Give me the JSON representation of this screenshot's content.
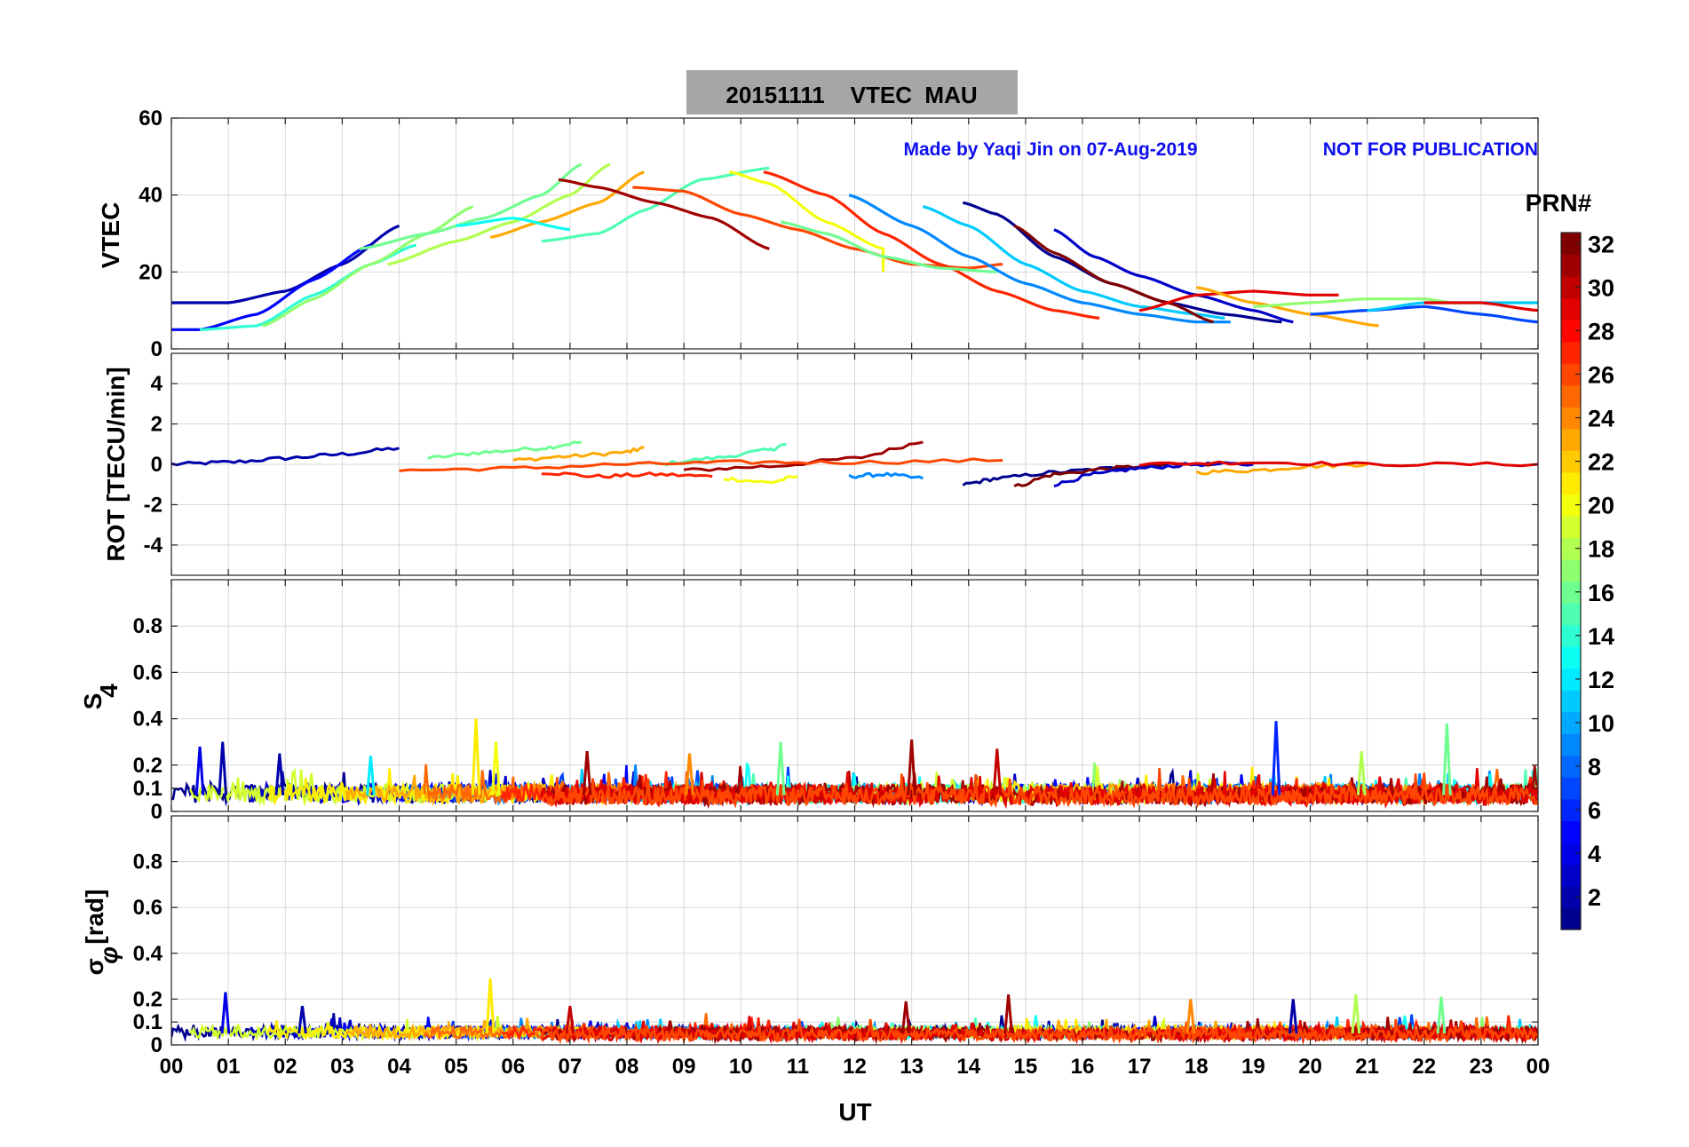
{
  "figure": {
    "title": "20151111    VTEC  MAU",
    "note_author": "Made by Yaqi Jin on 07-Aug-2019",
    "note_warning": "NOT FOR PUBLICATION",
    "colorbar_label": "PRN#",
    "colorbar_ticks": [
      "2",
      "4",
      "6",
      "8",
      "10",
      "12",
      "14",
      "16",
      "18",
      "20",
      "22",
      "24",
      "26",
      "28",
      "30",
      "32"
    ],
    "colorbar_range": [
      1,
      32
    ],
    "colormap": [
      "#00008f",
      "#0000ff",
      "#0080ff",
      "#00ffff",
      "#80ff80",
      "#ffff00",
      "#ff8000",
      "#ff0000",
      "#800000"
    ],
    "xlabel": "UT",
    "x_tick_labels": [
      "00",
      "01",
      "02",
      "03",
      "04",
      "05",
      "06",
      "07",
      "08",
      "09",
      "10",
      "11",
      "12",
      "13",
      "14",
      "15",
      "16",
      "17",
      "18",
      "19",
      "20",
      "21",
      "22",
      "23",
      "00"
    ]
  },
  "chart_data": [
    {
      "type": "line",
      "panel": "vtec",
      "ylabel": "VTEC",
      "ylim": [
        0,
        60
      ],
      "yticks": [
        0,
        20,
        40,
        60
      ],
      "y_tick_labels": [
        "0",
        "20",
        "40",
        "60"
      ],
      "xlim": [
        0,
        24
      ],
      "series": [
        {
          "prn": 2,
          "x": [
            0.0,
            1.0,
            2.0,
            3.0,
            4.0
          ],
          "y": [
            12,
            12,
            15,
            22,
            32
          ]
        },
        {
          "prn": 5,
          "x": [
            0.0,
            0.5,
            1.5,
            2.5,
            3.5
          ],
          "y": [
            5,
            5,
            9,
            18,
            27
          ]
        },
        {
          "prn": 14,
          "x": [
            0.5,
            1.5,
            2.5,
            3.5,
            4.3
          ],
          "y": [
            5,
            6,
            14,
            22,
            27
          ]
        },
        {
          "prn": 17,
          "x": [
            1.6,
            2.5,
            3.5,
            4.5,
            5.3
          ],
          "y": [
            6,
            13,
            22,
            30,
            37
          ]
        },
        {
          "prn": 16,
          "x": [
            3.3,
            4.5,
            5.5,
            6.5,
            7.2
          ],
          "y": [
            26,
            30,
            34,
            40,
            48
          ]
        },
        {
          "prn": 18,
          "x": [
            3.8,
            5.0,
            6.0,
            7.0,
            7.7
          ],
          "y": [
            22,
            28,
            33,
            40,
            48
          ]
        },
        {
          "prn": 23,
          "x": [
            5.6,
            6.5,
            7.5,
            8.3
          ],
          "y": [
            29,
            33,
            38,
            46
          ]
        },
        {
          "prn": 13,
          "x": [
            5.0,
            6.0,
            7.0
          ],
          "y": [
            32,
            34,
            31
          ]
        },
        {
          "prn": 15,
          "x": [
            6.5,
            7.5,
            8.3,
            9.3,
            10.5
          ],
          "y": [
            28,
            30,
            36,
            44,
            47
          ]
        },
        {
          "prn": 31,
          "x": [
            6.8,
            7.5,
            8.5,
            9.5,
            10.5
          ],
          "y": [
            44,
            42,
            38,
            34,
            26
          ]
        },
        {
          "prn": 26,
          "x": [
            8.1,
            9.0,
            10.0,
            11.0,
            12.0,
            13.0,
            14.0,
            14.6
          ],
          "y": [
            42,
            41,
            35,
            31,
            26,
            22,
            21,
            22
          ]
        },
        {
          "prn": 20,
          "x": [
            9.8,
            10.5,
            11.5,
            12.5,
            12.5
          ],
          "y": [
            46,
            43,
            33,
            26,
            20
          ]
        },
        {
          "prn": 27,
          "x": [
            10.4,
            11.5,
            12.5,
            13.5,
            14.5,
            15.5,
            16.3
          ],
          "y": [
            46,
            40,
            30,
            22,
            15,
            10,
            8
          ]
        },
        {
          "prn": 16,
          "x": [
            10.7,
            11.5,
            12.5,
            13.5,
            14.5
          ],
          "y": [
            33,
            30,
            24,
            21,
            20
          ]
        },
        {
          "prn": 9,
          "x": [
            11.9,
            13.0,
            14.0,
            15.0,
            16.0,
            17.0,
            18.0,
            18.6
          ],
          "y": [
            40,
            32,
            24,
            17,
            12,
            9,
            7,
            7
          ]
        },
        {
          "prn": 11,
          "x": [
            13.2,
            14.0,
            15.0,
            16.0,
            17.0,
            18.0,
            18.5
          ],
          "y": [
            37,
            32,
            22,
            15,
            11,
            9,
            8
          ]
        },
        {
          "prn": 1,
          "x": [
            13.9,
            14.5,
            15.5,
            16.5,
            17.5,
            18.5,
            19.5
          ],
          "y": [
            38,
            35,
            24,
            17,
            12,
            9,
            7
          ]
        },
        {
          "prn": 32,
          "x": [
            14.8,
            15.5,
            16.5,
            17.5,
            18.3
          ],
          "y": [
            32,
            25,
            17,
            12,
            7
          ]
        },
        {
          "prn": 3,
          "x": [
            15.5,
            16.2,
            17.0,
            18.0,
            19.0,
            19.7
          ],
          "y": [
            31,
            24,
            19,
            14,
            10,
            7
          ]
        },
        {
          "prn": 29,
          "x": [
            17.0,
            18.0,
            19.0,
            20.0,
            20.5
          ],
          "y": [
            10,
            14,
            15,
            14,
            14
          ]
        },
        {
          "prn": 23,
          "x": [
            18.0,
            19.0,
            20.0,
            21.2
          ],
          "y": [
            16,
            12,
            9,
            6
          ]
        },
        {
          "prn": 17,
          "x": [
            19.0,
            20.0,
            21.0,
            22.0,
            22.5
          ],
          "y": [
            11,
            12,
            13,
            13,
            12
          ]
        },
        {
          "prn": 7,
          "x": [
            20.0,
            21.0,
            22.0,
            23.0,
            24.0
          ],
          "y": [
            9,
            10,
            11,
            9,
            7
          ]
        },
        {
          "prn": 11,
          "x": [
            21.0,
            22.0,
            23.0,
            24.0
          ],
          "y": [
            10,
            12,
            12,
            12
          ]
        },
        {
          "prn": 29,
          "x": [
            22.0,
            23.0,
            24.0
          ],
          "y": [
            12,
            12,
            10
          ]
        }
      ]
    },
    {
      "type": "line",
      "panel": "rot",
      "ylabel": "ROT [TECU/min]",
      "ylim": [
        -5.5,
        5.5
      ],
      "yticks": [
        -4,
        -2,
        0,
        2,
        4
      ],
      "y_tick_labels": [
        "-4",
        "-2",
        "0",
        "2",
        "4"
      ],
      "xlim": [
        0,
        24
      ],
      "series": [
        {
          "prn": 2,
          "x": [
            0.0,
            1.0,
            2.0,
            3.0,
            4.0
          ],
          "y": [
            0.0,
            0.1,
            0.3,
            0.5,
            0.8
          ]
        },
        {
          "prn": 16,
          "x": [
            4.5,
            5.5,
            6.5,
            7.2
          ],
          "y": [
            0.3,
            0.6,
            0.8,
            1.1
          ]
        },
        {
          "prn": 23,
          "x": [
            6.0,
            7.0,
            8.0,
            8.3
          ],
          "y": [
            0.2,
            0.4,
            0.6,
            0.8
          ]
        },
        {
          "prn": 15,
          "x": [
            8.5,
            9.5,
            10.5,
            10.8
          ],
          "y": [
            0.0,
            0.3,
            0.7,
            1.0
          ]
        },
        {
          "prn": 31,
          "x": [
            9.0,
            10.5,
            12.0,
            13.2
          ],
          "y": [
            -0.3,
            -0.1,
            0.3,
            1.1
          ]
        },
        {
          "prn": 27,
          "x": [
            6.5,
            7.5,
            8.5,
            9.5
          ],
          "y": [
            -0.4,
            -0.6,
            -0.5,
            -0.6
          ]
        },
        {
          "prn": 20,
          "x": [
            9.7,
            10.5,
            11.0
          ],
          "y": [
            -0.7,
            -0.9,
            -0.6
          ]
        },
        {
          "prn": 9,
          "x": [
            11.9,
            12.5,
            13.2
          ],
          "y": [
            -0.6,
            -0.5,
            -0.7
          ]
        },
        {
          "prn": 1,
          "x": [
            13.9,
            14.5,
            15.5,
            16.5,
            17.5
          ],
          "y": [
            -1.0,
            -0.7,
            -0.4,
            -0.2,
            0.0
          ]
        },
        {
          "prn": 32,
          "x": [
            14.8,
            15.5,
            16.5,
            17.5,
            18.3
          ],
          "y": [
            -1.1,
            -0.5,
            -0.2,
            0.0,
            0.0
          ]
        },
        {
          "prn": 3,
          "x": [
            15.5,
            16.2,
            17.0,
            18.0,
            19.0
          ],
          "y": [
            -1.0,
            -0.5,
            -0.2,
            0.0,
            0.0
          ]
        },
        {
          "prn": 23,
          "x": [
            18.0,
            19.0,
            20.0,
            21.0
          ],
          "y": [
            -0.4,
            -0.3,
            -0.1,
            0.0
          ]
        },
        {
          "prn": 29,
          "x": [
            17.0,
            19.0,
            21.0,
            24.0
          ],
          "y": [
            0.0,
            0.1,
            0.0,
            0.0
          ]
        },
        {
          "prn": 26,
          "x": [
            4.0,
            6.0,
            8.0,
            10.0,
            12.0,
            14.6
          ],
          "y": [
            -0.3,
            -0.2,
            0.0,
            0.1,
            0.1,
            0.2
          ]
        }
      ]
    },
    {
      "type": "line",
      "panel": "s4",
      "ylabel": "S4",
      "ylim": [
        0,
        1.0
      ],
      "yticks": [
        0,
        0.1,
        0.2,
        0.4,
        0.6,
        0.8
      ],
      "y_tick_labels": [
        "0",
        "0.1",
        "0.2",
        "0.4",
        "0.6",
        "0.8"
      ],
      "xlim": [
        0,
        24
      ],
      "baseline": 0.07,
      "noise": 0.04,
      "spikes": [
        {
          "prn": 4,
          "x": 0.5,
          "y": 0.28
        },
        {
          "prn": 2,
          "x": 0.9,
          "y": 0.3
        },
        {
          "prn": 2,
          "x": 1.9,
          "y": 0.25
        },
        {
          "prn": 12,
          "x": 3.5,
          "y": 0.24
        },
        {
          "prn": 21,
          "x": 5.35,
          "y": 0.4
        },
        {
          "prn": 20,
          "x": 5.7,
          "y": 0.3
        },
        {
          "prn": 31,
          "x": 7.3,
          "y": 0.26
        },
        {
          "prn": 24,
          "x": 9.1,
          "y": 0.25
        },
        {
          "prn": 16,
          "x": 10.7,
          "y": 0.3
        },
        {
          "prn": 31,
          "x": 13.0,
          "y": 0.31
        },
        {
          "prn": 30,
          "x": 14.5,
          "y": 0.27
        },
        {
          "prn": 6,
          "x": 19.4,
          "y": 0.39
        },
        {
          "prn": 18,
          "x": 20.9,
          "y": 0.26
        },
        {
          "prn": 16,
          "x": 22.4,
          "y": 0.38
        }
      ]
    },
    {
      "type": "line",
      "panel": "sigma_phi",
      "ylabel": "σφ [rad]",
      "ylim": [
        0,
        1.0
      ],
      "yticks": [
        0,
        0.1,
        0.2,
        0.4,
        0.6,
        0.8
      ],
      "y_tick_labels": [
        "0",
        "0.1",
        "0.2",
        "0.4",
        "0.6",
        "0.8"
      ],
      "xlim": [
        0,
        24
      ],
      "baseline": 0.05,
      "noise": 0.025,
      "spikes": [
        {
          "prn": 4,
          "x": 0.95,
          "y": 0.23
        },
        {
          "prn": 2,
          "x": 2.3,
          "y": 0.17
        },
        {
          "prn": 21,
          "x": 5.6,
          "y": 0.29
        },
        {
          "prn": 30,
          "x": 7.0,
          "y": 0.17
        },
        {
          "prn": 31,
          "x": 12.9,
          "y": 0.19
        },
        {
          "prn": 31,
          "x": 14.7,
          "y": 0.22
        },
        {
          "prn": 24,
          "x": 17.9,
          "y": 0.2
        },
        {
          "prn": 2,
          "x": 19.7,
          "y": 0.2
        },
        {
          "prn": 18,
          "x": 20.8,
          "y": 0.22
        },
        {
          "prn": 16,
          "x": 22.3,
          "y": 0.21
        }
      ]
    }
  ]
}
